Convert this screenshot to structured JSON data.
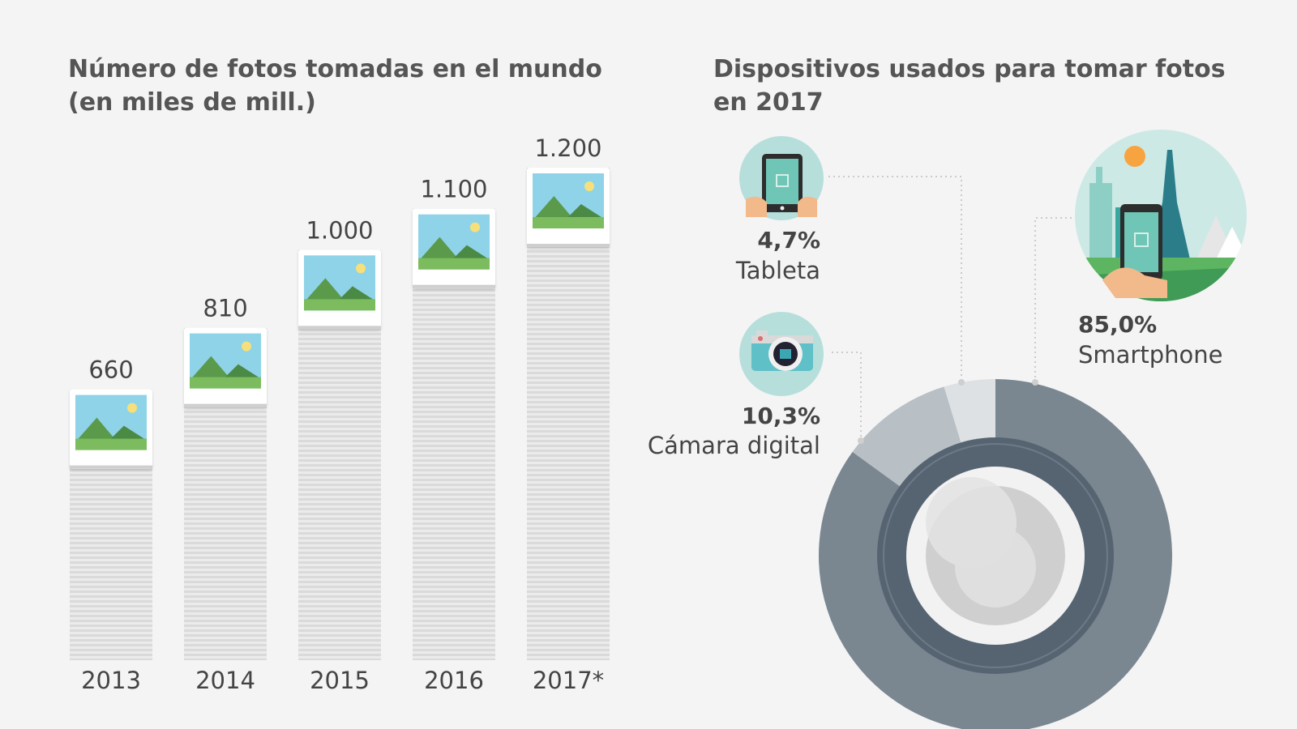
{
  "chart_data": [
    {
      "type": "bar",
      "title_line1": "Número de fotos tomadas en el mundo",
      "title_line2": "(en miles de mill.)",
      "categories": [
        "2013",
        "2014",
        "2015",
        "2016",
        "2017*"
      ],
      "values": [
        660,
        810,
        1000,
        1100,
        1200
      ],
      "value_labels": [
        "660",
        "810",
        "1.000",
        "1.100",
        "1.200"
      ],
      "ylim": [
        0,
        1200
      ],
      "xlabel": "",
      "ylabel": ""
    },
    {
      "type": "pie",
      "title_line1": "Dispositivos usados para tomar fotos",
      "title_line2": "en 2017",
      "slices": [
        {
          "name": "Smartphone",
          "value": 85.0,
          "label": "85,0%",
          "color": "#7a8791"
        },
        {
          "name": "Cámara digital",
          "value": 10.3,
          "label": "10,3%",
          "color": "#b8bfc5"
        },
        {
          "name": "Tableta",
          "value": 4.7,
          "label": "4,7%",
          "color": "#dde1e4"
        }
      ]
    }
  ],
  "colors": {
    "sky": "#8fd3e8",
    "grass": "#7cbc5e",
    "mountain_dark": "#5a9a4a",
    "sun": "#f7e07a",
    "icon_bg": "#b6dfdc",
    "lens_ring": "#566472"
  }
}
